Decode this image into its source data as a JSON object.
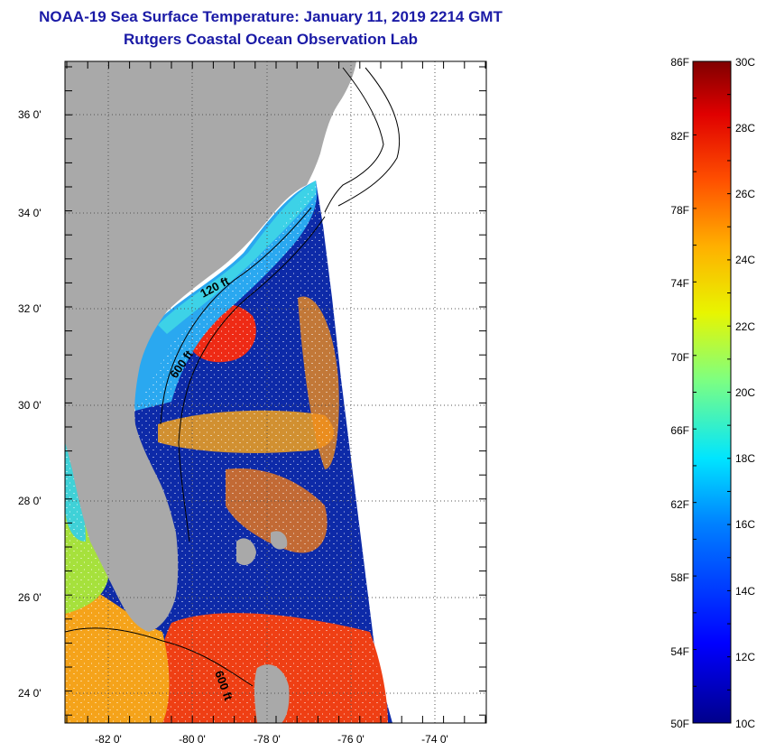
{
  "header": {
    "title": "NOAA-19 Sea Surface Temperature:  January 11, 2019 2214 GMT",
    "subtitle": "Rutgers Coastal Ocean Observation Lab"
  },
  "map": {
    "lat_ticks": [
      "36 0'",
      "34 0'",
      "32 0'",
      "30 0'",
      "28 0'",
      "26 0'",
      "24 0'"
    ],
    "lon_ticks": [
      "-82 0'",
      "-80 0'",
      "-78 0'",
      "-76 0'",
      "-74 0'"
    ],
    "contour_labels": [
      "120 ft",
      "600 ft",
      "600 ft"
    ],
    "colors": {
      "land": "#a9a9a9",
      "cold": "#0b1a8c",
      "warm": "#e8261a",
      "coastal": "#2aa8f0"
    }
  },
  "colorbar": {
    "fahrenheit_labels": [
      "86F",
      "82F",
      "78F",
      "74F",
      "70F",
      "66F",
      "62F",
      "58F",
      "54F",
      "50F"
    ],
    "celsius_labels": [
      "30C",
      "28C",
      "26C",
      "24C",
      "22C",
      "20C",
      "18C",
      "16C",
      "14C",
      "12C",
      "10C"
    ]
  }
}
